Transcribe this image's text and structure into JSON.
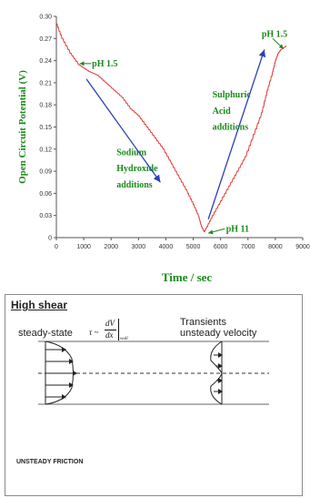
{
  "chart_data": {
    "type": "line",
    "title": "",
    "xlabel": "Time / sec",
    "ylabel": "Open Circuit Potential (V)",
    "xlim": [
      0,
      9000
    ],
    "ylim": [
      0,
      0.3
    ],
    "x_ticks": [
      "0",
      "1000",
      "2000",
      "3000",
      "4000",
      "5000",
      "6000",
      "7000",
      "8000",
      "9000"
    ],
    "y_ticks": [
      "0",
      "0.03",
      "0.06",
      "0.09",
      "0.12",
      "0.15",
      "0.18",
      "0.21",
      "0.24",
      "0.27",
      "0.30"
    ],
    "grid": false,
    "series": [
      {
        "color": "#e23b3b",
        "x": [
          0,
          200,
          500,
          800,
          1000,
          1200,
          1500,
          1800,
          2100,
          2400,
          2700,
          3000,
          3300,
          3600,
          3900,
          4200,
          4500,
          4800,
          5000,
          5200,
          5300,
          5400,
          5500,
          5700,
          6000,
          6300,
          6600,
          6900,
          7200,
          7500,
          7700,
          7900,
          8000,
          8100,
          8200,
          8400
        ],
        "y": [
          0.29,
          0.27,
          0.25,
          0.235,
          0.23,
          0.225,
          0.22,
          0.21,
          0.2,
          0.19,
          0.175,
          0.165,
          0.15,
          0.135,
          0.12,
          0.1,
          0.08,
          0.06,
          0.045,
          0.028,
          0.015,
          0.008,
          0.015,
          0.03,
          0.05,
          0.07,
          0.09,
          0.11,
          0.14,
          0.17,
          0.2,
          0.225,
          0.24,
          0.25,
          0.255,
          0.26
        ]
      }
    ],
    "annotations": [
      {
        "text": "pH 1.5",
        "x": 1300,
        "y": 0.232
      },
      {
        "text": "pH 1.5",
        "x": 7500,
        "y": 0.272
      },
      {
        "text": "pH 11",
        "x": 6200,
        "y": 0.008
      },
      {
        "text": "Sodium",
        "x": 2200,
        "y": 0.112
      },
      {
        "text": "Hydroxide",
        "x": 2200,
        "y": 0.09
      },
      {
        "text": "additions",
        "x": 2200,
        "y": 0.068
      },
      {
        "text": "Sulphuric",
        "x": 5700,
        "y": 0.19
      },
      {
        "text": "Acid",
        "x": 5700,
        "y": 0.168
      },
      {
        "text": "additions",
        "x": 5700,
        "y": 0.146
      }
    ]
  },
  "panel": {
    "title": "High shear",
    "steady_label": "steady-state",
    "formula": {
      "tau": "τ ~",
      "num": "dV",
      "den": "dx",
      "sub": "wall"
    },
    "transients_line1": "Transients",
    "transients_line2": "unsteady velocity",
    "footer_label": "UNSTEADY FRICTION"
  }
}
